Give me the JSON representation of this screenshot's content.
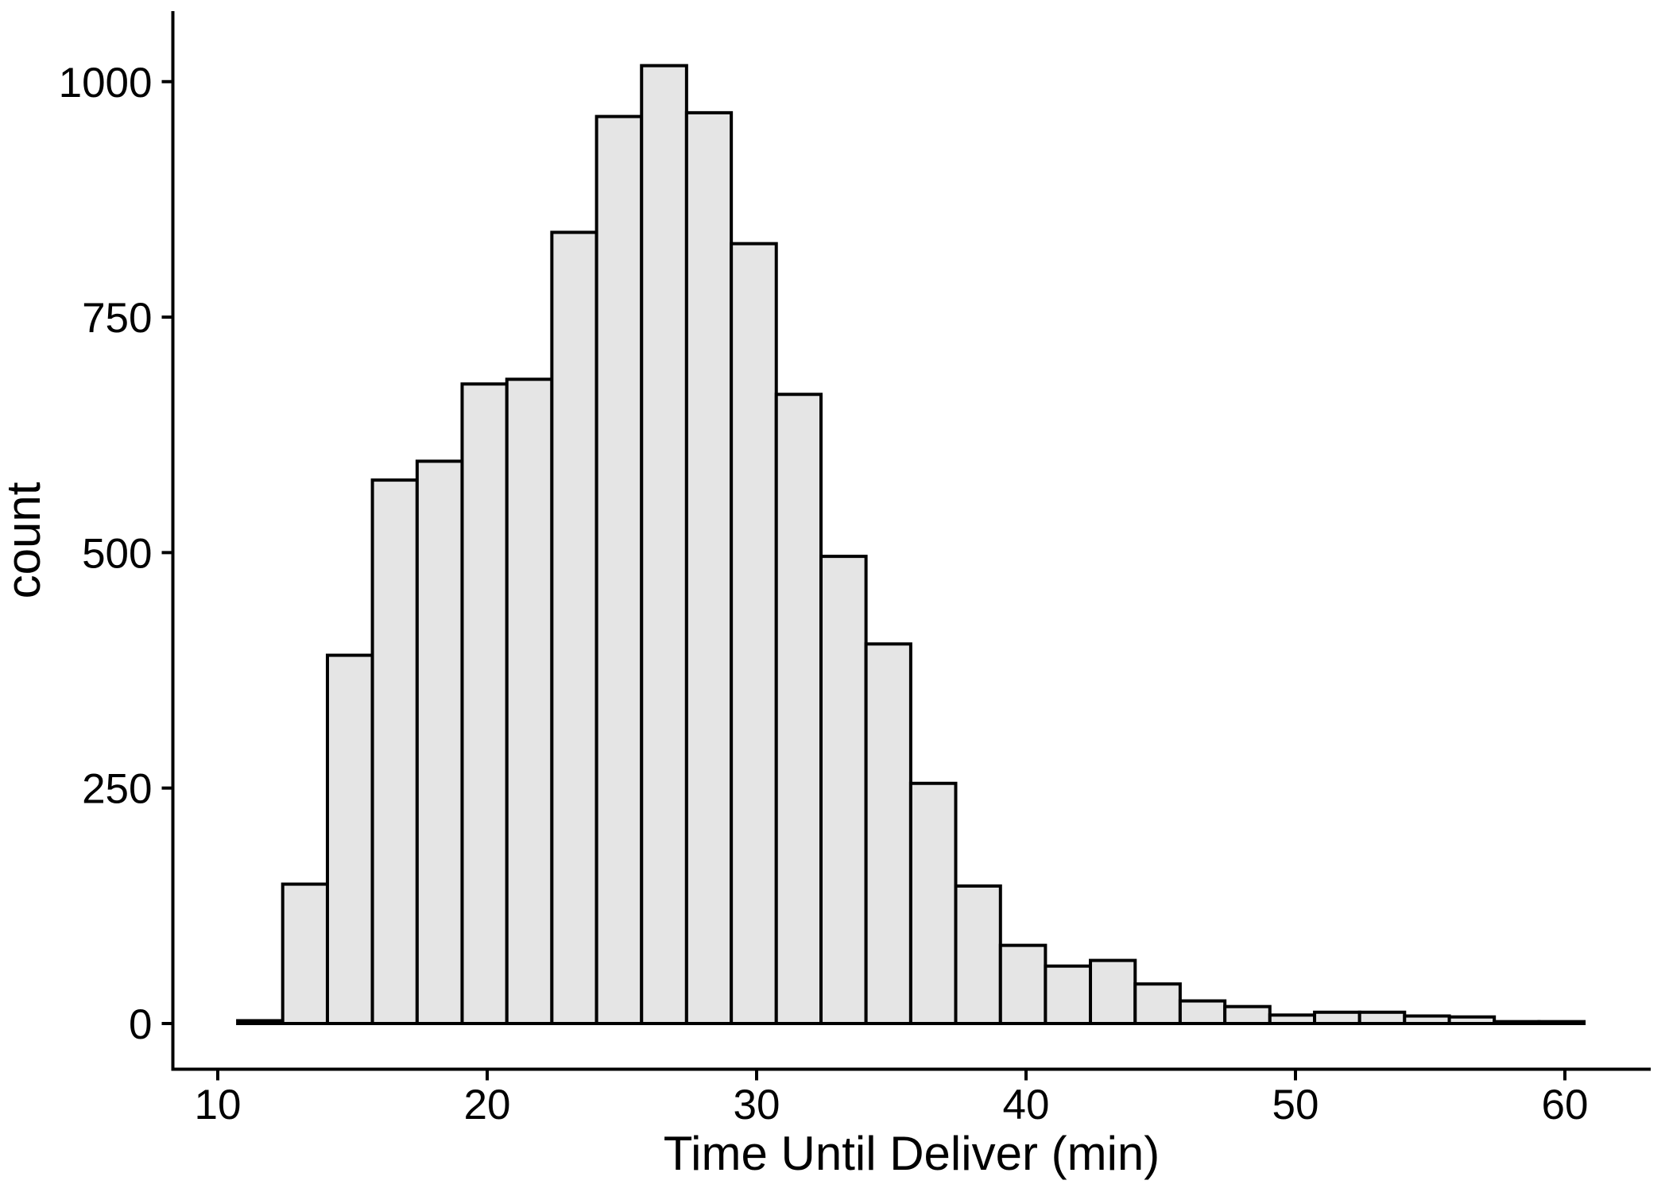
{
  "figure": {
    "background": "#ffffff"
  },
  "chart_data": {
    "type": "histogram",
    "title": "",
    "xlabel": "Time Until Deliver (min)",
    "ylabel": "count",
    "x_ticks": [
      10,
      20,
      30,
      40,
      50,
      60
    ],
    "y_ticks": [
      0,
      250,
      500,
      750,
      1000
    ],
    "xlim": [
      8.3,
      63.2
    ],
    "ylim": [
      0,
      1062
    ],
    "grid": false,
    "legend": false,
    "n_bins": 30,
    "bin_edges": [
      10.74,
      12.41,
      14.07,
      15.74,
      17.4,
      19.07,
      20.73,
      22.4,
      24.06,
      25.73,
      27.4,
      29.06,
      30.73,
      32.39,
      34.06,
      35.72,
      37.39,
      39.05,
      40.72,
      42.39,
      44.05,
      45.72,
      47.38,
      49.05,
      50.71,
      52.38,
      54.05,
      55.71,
      57.38,
      59.04,
      60.71
    ],
    "counts": [
      3,
      148,
      391,
      577,
      597,
      679,
      684,
      840,
      963,
      1017,
      967,
      828,
      668,
      496,
      403,
      255,
      146,
      83,
      61,
      67,
      42,
      24,
      18,
      9,
      12,
      12,
      8,
      7,
      2,
      2
    ],
    "colors": {
      "bar_fill": "#e5e5e5",
      "bar_stroke": "#000000",
      "axis": "#000000",
      "text": "#000000"
    }
  }
}
